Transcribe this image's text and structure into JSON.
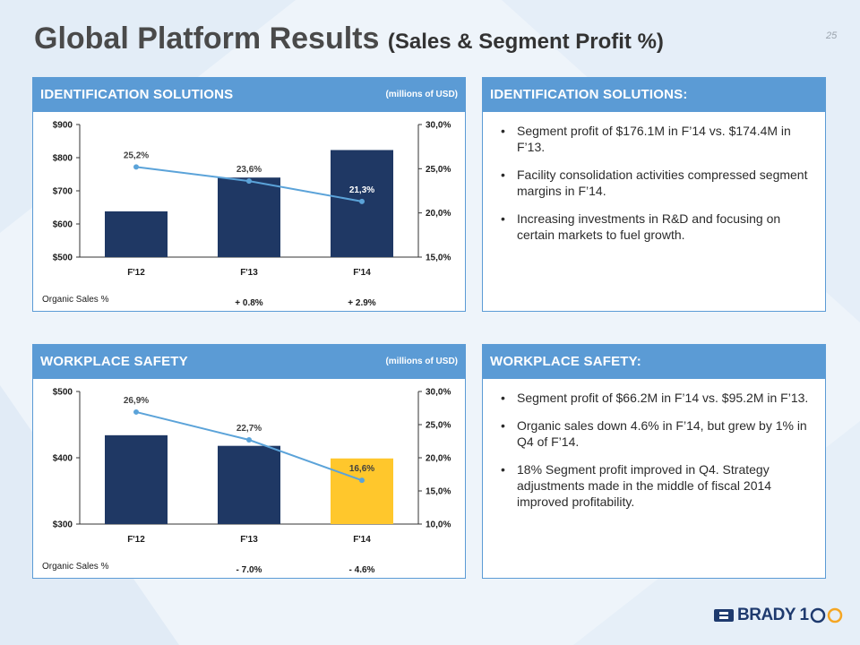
{
  "title": {
    "main": "Global Platform Results",
    "sub": "(Sales & Segment Profit %)"
  },
  "page_number": "25",
  "colors": {
    "header": "#5b9bd5",
    "bar_dark": "#1f3864",
    "bar_highlight": "#ffc72c",
    "line": "#5ba3d9"
  },
  "panels": {
    "id_chart": {
      "title": "IDENTIFICATION SOLUTIONS",
      "unit": "(millions of USD)",
      "organic_label": "Organic Sales %",
      "organic_values": [
        "",
        "+ 0.8%",
        "+ 2.9%"
      ]
    },
    "id_text": {
      "title": "IDENTIFICATION SOLUTIONS:",
      "bullets": [
        "Segment profit of $176.1M in F’14 vs. $174.4M in F’13.",
        "Facility consolidation activities compressed segment margins in F’14.",
        "Increasing investments in R&D and focusing on certain markets to fuel growth."
      ]
    },
    "ws_chart": {
      "title": "WORKPLACE SAFETY",
      "unit": "(millions of USD)",
      "organic_label": "Organic Sales %",
      "organic_values": [
        "",
        "- 7.0%",
        "- 4.6%"
      ]
    },
    "ws_text": {
      "title": "WORKPLACE SAFETY:",
      "bullets": [
        "Segment profit of $66.2M in F’14 vs. $95.2M in F’13.",
        "Organic sales down 4.6% in F’14, but grew by 1% in Q4 of F’14.",
        "18% Segment profit improved in Q4.  Strategy adjustments made in the middle of fiscal 2014 improved profitability."
      ]
    }
  },
  "chart_data": [
    {
      "type": "bar",
      "categories": [
        "F'12",
        "F'13",
        "F'14"
      ],
      "series": [
        {
          "kind": "bar",
          "values": [
            638,
            740,
            823
          ]
        },
        {
          "kind": "line",
          "axis": "right",
          "values": [
            25.2,
            23.6,
            21.3
          ],
          "labels": [
            "25,2%",
            "23,6%",
            "21,3%"
          ]
        }
      ],
      "y_left": {
        "min": 500,
        "max": 900,
        "ticks": [
          "$500",
          "$600",
          "$700",
          "$800",
          "$900"
        ]
      },
      "y_right": {
        "min": 15,
        "max": 30,
        "ticks": [
          "15,0%",
          "20,0%",
          "25,0%",
          "30,0%"
        ]
      },
      "highlight_index": -1
    },
    {
      "type": "bar",
      "categories": [
        "F'12",
        "F'13",
        "F'14"
      ],
      "series": [
        {
          "kind": "bar",
          "values": [
            434,
            418,
            399
          ]
        },
        {
          "kind": "line",
          "axis": "right",
          "values": [
            26.9,
            22.7,
            16.6
          ],
          "labels": [
            "26,9%",
            "22,7%",
            "16,6%"
          ]
        }
      ],
      "y_left": {
        "min": 300,
        "max": 500,
        "ticks": [
          "$300",
          "$400",
          "$500"
        ]
      },
      "y_right": {
        "min": 10,
        "max": 30,
        "ticks": [
          "10,0%",
          "15,0%",
          "20,0%",
          "25,0%",
          "30,0%"
        ]
      },
      "highlight_index": 2
    }
  ],
  "logo": {
    "text": "BRADY 1",
    "icon": "brady-logo-icon"
  }
}
